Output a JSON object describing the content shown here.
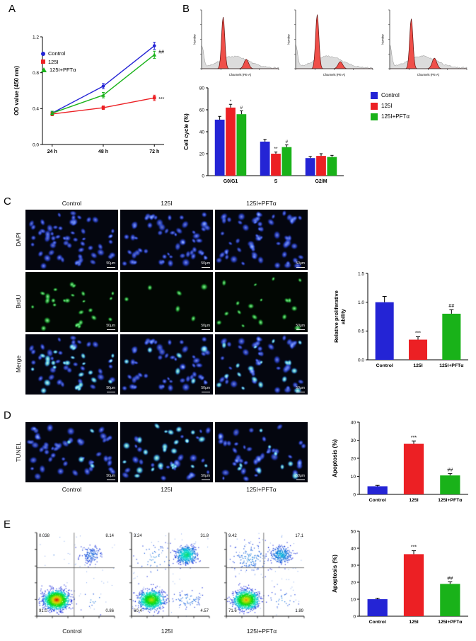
{
  "figure": {
    "panels": {
      "a": "A",
      "b": "B",
      "c": "C",
      "d": "D",
      "e": "E"
    }
  },
  "groups": [
    "Control",
    "125I",
    "125I+PFTα"
  ],
  "colors": {
    "blue": "#2424D5",
    "red": "#EC2024",
    "green": "#19B219"
  },
  "panelC": {
    "col_headers": [
      "Control",
      "125I",
      "125I+PFTα"
    ],
    "row_labels": [
      "DAPI",
      "BrdU",
      "Merge"
    ],
    "scale_bar": "50μm",
    "images": {
      "n_nuclei": 58,
      "brdu_counts": [
        26,
        6,
        18
      ]
    }
  },
  "panelD": {
    "row_label": "TUNEL",
    "col_labels": [
      "Control",
      "125I",
      "125I+PFTα"
    ],
    "scale_bar": "50μm",
    "images": {
      "n_nuclei": 52,
      "tunel_counts": [
        4,
        26,
        9
      ]
    }
  },
  "panelE": {
    "col_labels": [
      "Control",
      "125I",
      "125I+PFTα"
    ]
  },
  "chart_data": {
    "panelA_line": {
      "type": "line",
      "title": "",
      "xlabel": "",
      "ylabel": "OD value (450 nm)",
      "categories": [
        "24 h",
        "48 h",
        "72 h"
      ],
      "ylim": [
        0,
        1.2
      ],
      "yticks": [
        0,
        0.4,
        0.8,
        1.2
      ],
      "ytick_labels": [
        "0.0",
        "0.4",
        "0.8",
        "1.2"
      ],
      "series": [
        {
          "name": "Control",
          "color": "blue",
          "marker": "circle",
          "values": [
            0.35,
            0.65,
            1.1
          ],
          "errors": [
            0.02,
            0.03,
            0.04
          ]
        },
        {
          "name": "125I",
          "color": "red",
          "marker": "square",
          "values": [
            0.34,
            0.41,
            0.52
          ],
          "errors": [
            0.02,
            0.02,
            0.03
          ]
        },
        {
          "name": "125I+PFTα",
          "color": "green",
          "marker": "triangle",
          "values": [
            0.35,
            0.55,
            1.0
          ],
          "errors": [
            0.02,
            0.03,
            0.04
          ]
        }
      ],
      "annotations": [
        {
          "text": "##",
          "series": 2,
          "point": 2,
          "dy": -2
        },
        {
          "text": "***",
          "series": 1,
          "point": 2,
          "dy": 4
        }
      ],
      "legend_position": "top-left"
    },
    "panelB_histograms": [
      {
        "xlabel": "Channels (PE-A)",
        "ylabel": "Number",
        "g1": 0.88,
        "g2": 0.16
      },
      {
        "xlabel": "Channels (PE-A)",
        "ylabel": "Number",
        "g1": 0.92,
        "g2": 0.12
      },
      {
        "xlabel": "Channels (PE-A)",
        "ylabel": "Number",
        "g1": 0.85,
        "g2": 0.18
      }
    ],
    "panelB_bars": {
      "type": "bar",
      "title": "",
      "xlabel": "",
      "ylabel": "Cell cycle (%)",
      "ylim": [
        0,
        80
      ],
      "yticks": [
        0,
        20,
        40,
        60,
        80
      ],
      "categories": [
        "G0/G1",
        "S",
        "G2/M"
      ],
      "series": [
        {
          "name": "Control",
          "color": "blue",
          "values": [
            51,
            31,
            16
          ],
          "errors": [
            3,
            2,
            1.5
          ]
        },
        {
          "name": "125I",
          "color": "red",
          "values": [
            62,
            20,
            18
          ],
          "errors": [
            3,
            1.5,
            2
          ]
        },
        {
          "name": "125I+PFTα",
          "color": "green",
          "values": [
            56,
            26,
            17
          ],
          "errors": [
            3,
            2,
            1.5
          ]
        }
      ],
      "sig": [
        [
          "",
          "*",
          "#"
        ],
        [
          "",
          "**",
          "#"
        ],
        [
          "",
          "",
          ""
        ]
      ],
      "legend": [
        "Control",
        "125I",
        "125I+PFTα"
      ],
      "legend_position": "right"
    },
    "panelC_bars": {
      "type": "bar",
      "title": "",
      "xlabel": "",
      "ylabel_lines": [
        "Relative proliferative",
        "ability"
      ],
      "ylim": [
        0,
        1.5
      ],
      "yticks": [
        0,
        0.5,
        1.0,
        1.5
      ],
      "ytick_labels": [
        "0.0",
        "0.5",
        "1.0",
        "1.5"
      ],
      "categories": [
        "Control",
        "125I",
        "125I+PFTα"
      ],
      "values": [
        1.0,
        0.35,
        0.8
      ],
      "errors": [
        0.1,
        0.05,
        0.07
      ],
      "colors": [
        "blue",
        "red",
        "green"
      ],
      "sig": [
        "",
        "***",
        "##"
      ]
    },
    "panelD_bars": {
      "type": "bar",
      "title": "",
      "xlabel": "",
      "ylabel": "Apoptosis (%)",
      "ylim": [
        0,
        40
      ],
      "yticks": [
        0,
        10,
        20,
        30,
        40
      ],
      "categories": [
        "Control",
        "125I",
        "125I+PFTα"
      ],
      "values": [
        4.5,
        28,
        10.5
      ],
      "errors": [
        0.5,
        1.5,
        1
      ],
      "colors": [
        "blue",
        "red",
        "green"
      ],
      "sig": [
        "",
        "***",
        "##"
      ]
    },
    "panelE_bars": {
      "type": "bar",
      "title": "",
      "xlabel": "",
      "ylabel": "Apoptosis (%)",
      "ylim": [
        0,
        50
      ],
      "yticks": [
        0,
        10,
        20,
        30,
        40,
        50
      ],
      "categories": [
        "Control",
        "125I",
        "125I+PFTα"
      ],
      "values": [
        10,
        36.5,
        19
      ],
      "errors": [
        0.6,
        2,
        1.2
      ],
      "colors": [
        "blue",
        "red",
        "green"
      ],
      "sig": [
        "",
        "***",
        "##"
      ]
    },
    "panelE_scatters": [
      {
        "label": "Control",
        "quadrants": {
          "ul": "0.038",
          "ur": "8.14",
          "ll": "91.0",
          "lr": "0.86"
        }
      },
      {
        "label": "125I",
        "quadrants": {
          "ul": "3.24",
          "ur": "31.8",
          "ll": "60.4",
          "lr": "4.57"
        }
      },
      {
        "label": "125I+PFTα",
        "quadrants": {
          "ul": "9.42",
          "ur": "17.1",
          "ll": "71.6",
          "lr": "1.89"
        }
      }
    ]
  }
}
